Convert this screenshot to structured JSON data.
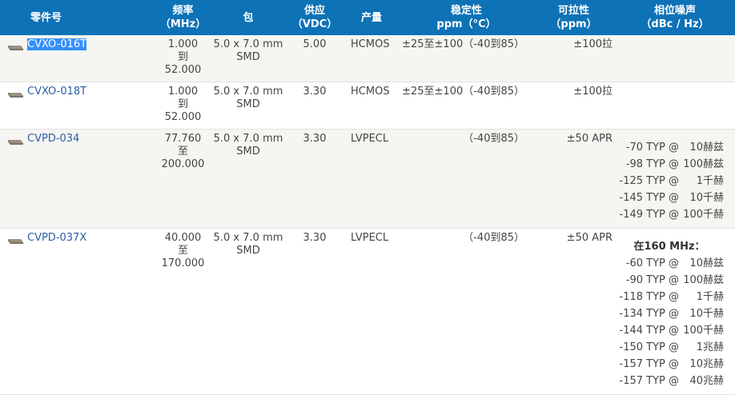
{
  "table": {
    "header": [
      "零件号",
      [
        "频率",
        "（MHz）"
      ],
      "包",
      [
        "供应",
        "（VDC）"
      ],
      "产量",
      [
        "稳定性",
        "ppm（°C）"
      ],
      [
        "可拉性",
        "（ppm）"
      ],
      [
        "相位噪声",
        "（dBc / Hz）"
      ]
    ],
    "rows": [
      {
        "part": "CVXO-016T",
        "freq": [
          "1.000",
          "到",
          "52.000"
        ],
        "package": [
          "5.0 x 7.0 mm",
          "SMD"
        ],
        "supply": "5.00",
        "output": "HCMOS",
        "stability": [
          "±25至±100",
          "（-40到85）"
        ],
        "pull": "±100拉",
        "noise_note": null,
        "noise": []
      },
      {
        "part": "CVXO-018T",
        "freq": [
          "1.000",
          "到",
          "52.000"
        ],
        "package": [
          "5.0 x 7.0 mm",
          "SMD"
        ],
        "supply": "3.30",
        "output": "HCMOS",
        "stability": [
          "±25至±100",
          "（-40到85）"
        ],
        "pull": "±100拉",
        "noise_note": null,
        "noise": []
      },
      {
        "part": "CVPD-034",
        "freq": [
          "77.760",
          "至",
          "200.000"
        ],
        "package": [
          "5.0 x 7.0 mm",
          "SMD"
        ],
        "supply": "3.30",
        "output": "LVPECL",
        "stability": [
          "（-40到85）"
        ],
        "pull": "±50 APR",
        "noise_note": null,
        "noise": [
          [
            "-70 TYP @",
            "10赫兹"
          ],
          [
            "-98 TYP @",
            "100赫兹"
          ],
          [
            "-125 TYP @",
            "1千赫"
          ],
          [
            "-145 TYP @",
            "10千赫"
          ],
          [
            "-149 TYP @",
            "100千赫"
          ]
        ]
      },
      {
        "part": "CVPD-037X",
        "freq": [
          "40.000",
          "至",
          "170.000"
        ],
        "package": [
          "5.0 x 7.0 mm",
          "SMD"
        ],
        "supply": "3.30",
        "output": "LVPECL",
        "stability": [
          "（-40到85）"
        ],
        "pull": "±50 APR",
        "noise_note": "在160 MHz：",
        "noise": [
          [
            "-60 TYP @",
            "10赫兹"
          ],
          [
            "-90 TYP @",
            "100赫兹"
          ],
          [
            "-118 TYP @",
            "1千赫"
          ],
          [
            "-134 TYP @",
            "10千赫"
          ],
          [
            "-144 TYP @",
            "100千赫"
          ],
          [
            "-150 TYP @",
            "1兆赫"
          ],
          [
            "-157 TYP @",
            "10兆赫"
          ],
          [
            "-157 TYP @",
            "40兆赫"
          ]
        ]
      }
    ]
  }
}
